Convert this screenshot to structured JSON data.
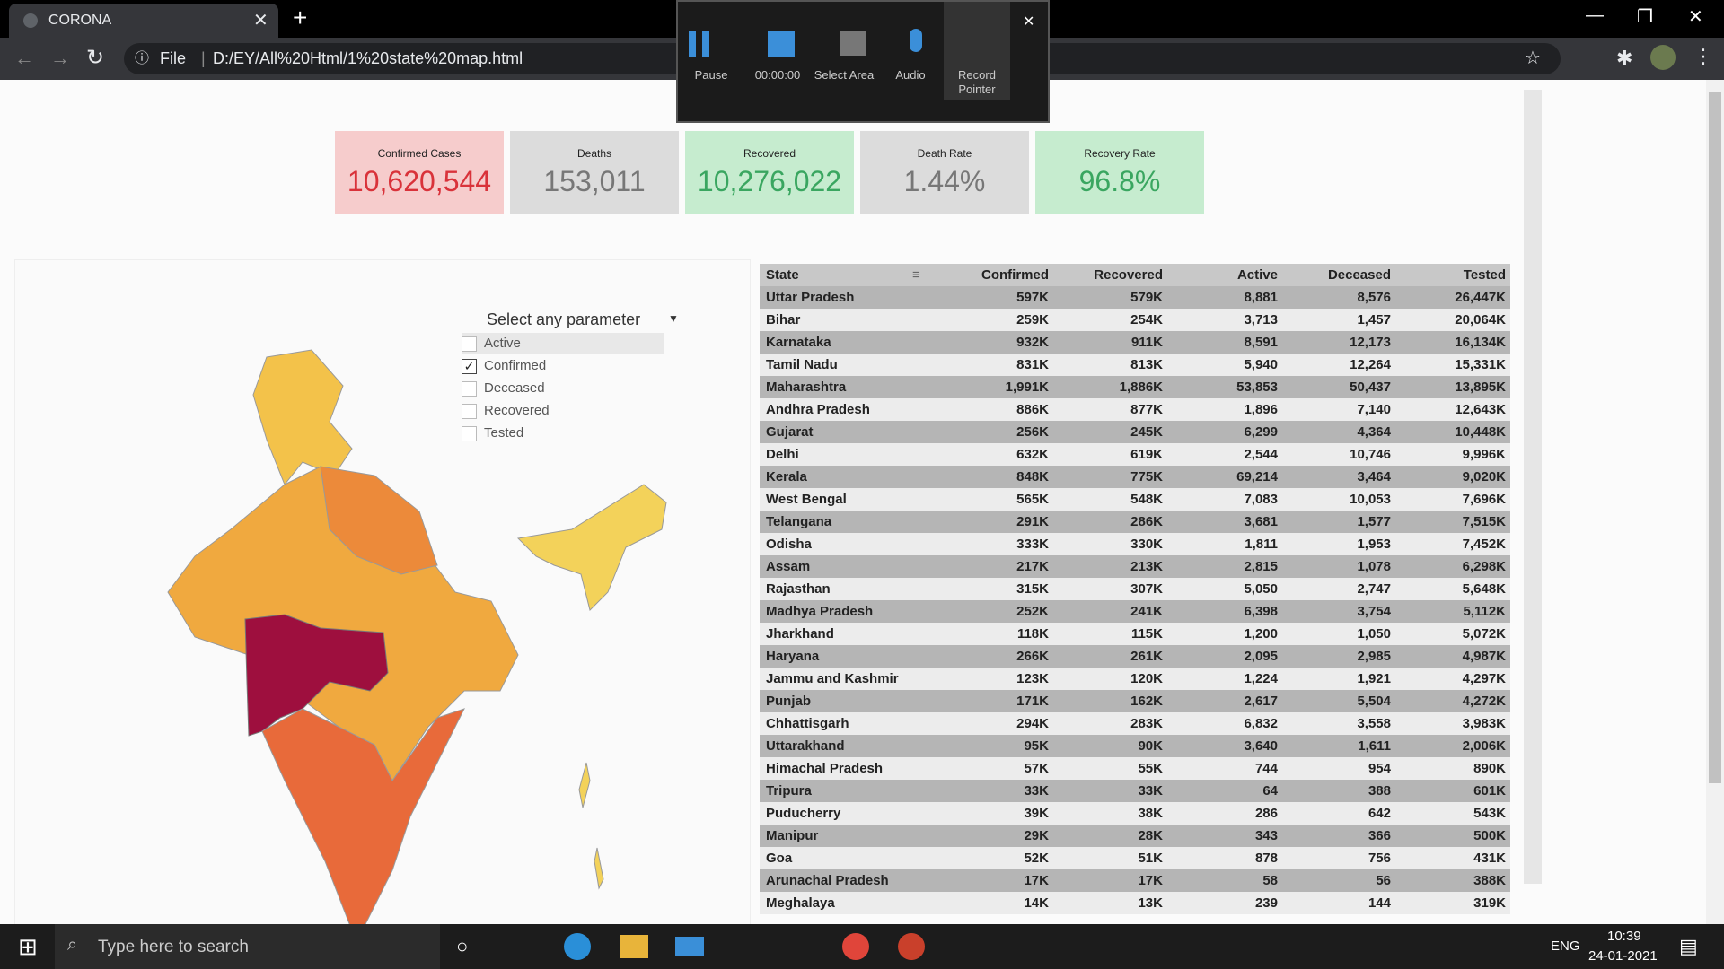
{
  "browser": {
    "tab_title": "CORONA",
    "url_scheme": "File",
    "url": "D:/EY/All%20Html/1%20state%20map.html"
  },
  "recorder": {
    "buttons": [
      "Pause",
      "00:00:00",
      "Select Area",
      "Audio",
      "Record Pointer"
    ]
  },
  "kpis": [
    {
      "label": "Confirmed Cases",
      "value": "10,620,544"
    },
    {
      "label": "Deaths",
      "value": "153,011"
    },
    {
      "label": "Recovered",
      "value": "10,276,022"
    },
    {
      "label": "Death Rate",
      "value": "1.44%"
    },
    {
      "label": "Recovery Rate",
      "value": "96.8%"
    }
  ],
  "parameter": {
    "title": "Select any parameter",
    "options": [
      {
        "label": "Active",
        "checked": false
      },
      {
        "label": "Confirmed",
        "checked": true
      },
      {
        "label": "Deceased",
        "checked": false
      },
      {
        "label": "Recovered",
        "checked": false
      },
      {
        "label": "Tested",
        "checked": false
      }
    ]
  },
  "table": {
    "columns": [
      "State",
      "Confirmed",
      "Recovered",
      "Active",
      "Deceased",
      "Tested"
    ],
    "rows": [
      [
        "Uttar Pradesh",
        "597K",
        "579K",
        "8,881",
        "8,576",
        "26,447K"
      ],
      [
        "Bihar",
        "259K",
        "254K",
        "3,713",
        "1,457",
        "20,064K"
      ],
      [
        "Karnataka",
        "932K",
        "911K",
        "8,591",
        "12,173",
        "16,134K"
      ],
      [
        "Tamil Nadu",
        "831K",
        "813K",
        "5,940",
        "12,264",
        "15,331K"
      ],
      [
        "Maharashtra",
        "1,991K",
        "1,886K",
        "53,853",
        "50,437",
        "13,895K"
      ],
      [
        "Andhra Pradesh",
        "886K",
        "877K",
        "1,896",
        "7,140",
        "12,643K"
      ],
      [
        "Gujarat",
        "256K",
        "245K",
        "6,299",
        "4,364",
        "10,448K"
      ],
      [
        "Delhi",
        "632K",
        "619K",
        "2,544",
        "10,746",
        "9,996K"
      ],
      [
        "Kerala",
        "848K",
        "775K",
        "69,214",
        "3,464",
        "9,020K"
      ],
      [
        "West Bengal",
        "565K",
        "548K",
        "7,083",
        "10,053",
        "7,696K"
      ],
      [
        "Telangana",
        "291K",
        "286K",
        "3,681",
        "1,577",
        "7,515K"
      ],
      [
        "Odisha",
        "333K",
        "330K",
        "1,811",
        "1,953",
        "7,452K"
      ],
      [
        "Assam",
        "217K",
        "213K",
        "2,815",
        "1,078",
        "6,298K"
      ],
      [
        "Rajasthan",
        "315K",
        "307K",
        "5,050",
        "2,747",
        "5,648K"
      ],
      [
        "Madhya Pradesh",
        "252K",
        "241K",
        "6,398",
        "3,754",
        "5,112K"
      ],
      [
        "Jharkhand",
        "118K",
        "115K",
        "1,200",
        "1,050",
        "5,072K"
      ],
      [
        "Haryana",
        "266K",
        "261K",
        "2,095",
        "2,985",
        "4,987K"
      ],
      [
        "Jammu and Kashmir",
        "123K",
        "120K",
        "1,224",
        "1,921",
        "4,297K"
      ],
      [
        "Punjab",
        "171K",
        "162K",
        "2,617",
        "5,504",
        "4,272K"
      ],
      [
        "Chhattisgarh",
        "294K",
        "283K",
        "6,832",
        "3,558",
        "3,983K"
      ],
      [
        "Uttarakhand",
        "95K",
        "90K",
        "3,640",
        "1,611",
        "2,006K"
      ],
      [
        "Himachal Pradesh",
        "57K",
        "55K",
        "744",
        "954",
        "890K"
      ],
      [
        "Tripura",
        "33K",
        "33K",
        "64",
        "388",
        "601K"
      ],
      [
        "Puducherry",
        "39K",
        "38K",
        "286",
        "642",
        "543K"
      ],
      [
        "Manipur",
        "29K",
        "28K",
        "343",
        "366",
        "500K"
      ],
      [
        "Goa",
        "52K",
        "51K",
        "878",
        "756",
        "431K"
      ],
      [
        "Arunachal Pradesh",
        "17K",
        "17K",
        "58",
        "56",
        "388K"
      ],
      [
        "Meghalaya",
        "14K",
        "13K",
        "239",
        "144",
        "319K"
      ]
    ]
  },
  "taskbar": {
    "search": "Type here to search",
    "language": "ENG",
    "time": "10:39",
    "date": "24-01-2021"
  }
}
